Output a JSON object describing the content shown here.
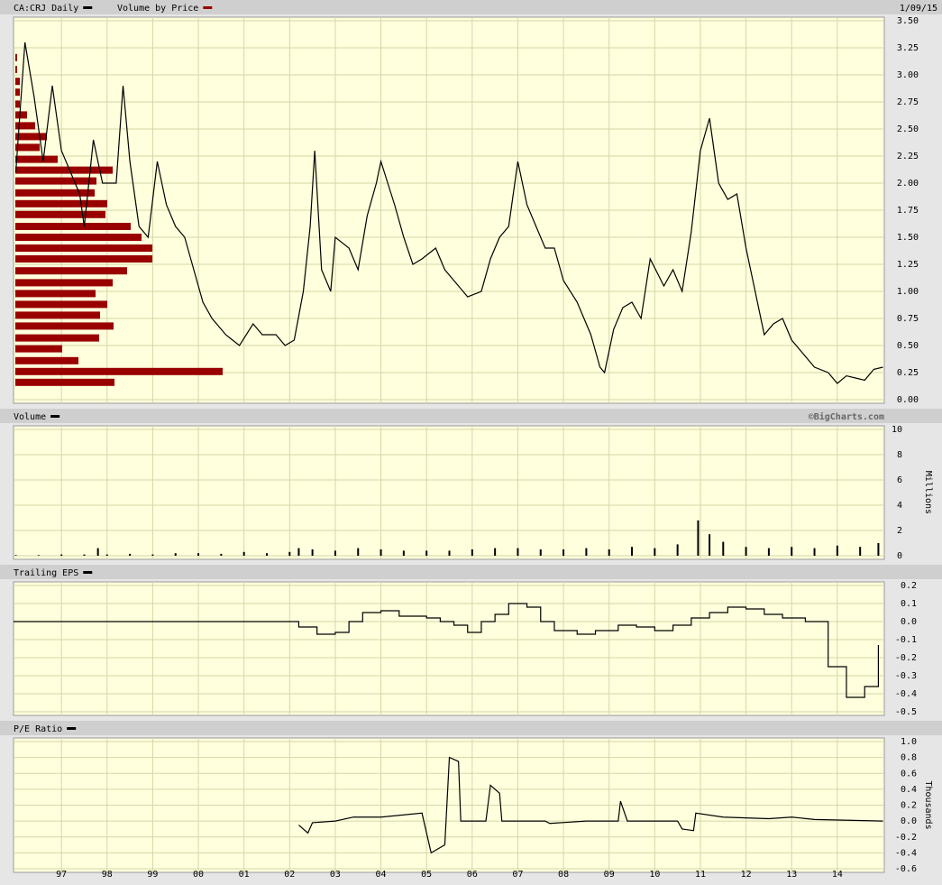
{
  "chart_data": [
    {
      "type": "line",
      "date": "1/09/15",
      "xlim": [
        1995.95,
        2015.03
      ],
      "x": [
        1996.0,
        1996.2,
        1996.4,
        1996.6,
        1996.8,
        1997.0,
        1997.2,
        1997.4,
        1997.5,
        1997.7,
        1997.9,
        1998.2,
        1998.35,
        1998.5,
        1998.7,
        1998.9,
        1999.1,
        1999.3,
        1999.5,
        1999.7,
        1999.9,
        2000.1,
        2000.3,
        2000.6,
        2000.9,
        2001.2,
        2001.4,
        2001.7,
        2001.9,
        2002.1,
        2002.3,
        2002.45,
        2002.55,
        2002.7,
        2002.9,
        2003.0,
        2003.3,
        2003.5,
        2003.7,
        2003.9,
        2004.0,
        2004.3,
        2004.5,
        2004.7,
        2004.9,
        2005.2,
        2005.4,
        2005.6,
        2005.9,
        2006.2,
        2006.4,
        2006.6,
        2006.8,
        2007.0,
        2007.2,
        2007.4,
        2007.6,
        2007.8,
        2008.0,
        2008.3,
        2008.6,
        2008.8,
        2008.9,
        2009.1,
        2009.3,
        2009.5,
        2009.7,
        2009.9,
        2010.2,
        2010.4,
        2010.6,
        2010.8,
        2011.0,
        2011.2,
        2011.4,
        2011.6,
        2011.8,
        2012.0,
        2012.2,
        2012.4,
        2012.6,
        2012.8,
        2013.0,
        2013.3,
        2013.5,
        2013.8,
        2014.0,
        2014.2,
        2014.4,
        2014.6,
        2014.8,
        2015.0
      ],
      "series": [
        {
          "name": "CA:CRJ Daily",
          "color": "#000000",
          "values": [
            2.1,
            3.3,
            2.8,
            2.2,
            2.9,
            2.3,
            2.1,
            1.9,
            1.6,
            2.4,
            2.0,
            2.0,
            2.9,
            2.2,
            1.6,
            1.5,
            2.2,
            1.8,
            1.6,
            1.5,
            1.2,
            0.9,
            0.75,
            0.6,
            0.5,
            0.7,
            0.6,
            0.6,
            0.5,
            0.55,
            1.0,
            1.6,
            2.3,
            1.2,
            1.0,
            1.5,
            1.4,
            1.2,
            1.7,
            2.0,
            2.2,
            1.8,
            1.5,
            1.25,
            1.3,
            1.4,
            1.2,
            1.1,
            0.95,
            1.0,
            1.3,
            1.5,
            1.6,
            2.2,
            1.8,
            1.6,
            1.4,
            1.4,
            1.1,
            0.9,
            0.6,
            0.3,
            0.25,
            0.65,
            0.85,
            0.9,
            0.75,
            1.3,
            1.05,
            1.2,
            1.0,
            1.55,
            2.3,
            2.6,
            2.0,
            1.85,
            1.9,
            1.4,
            1.0,
            0.6,
            0.7,
            0.75,
            0.55,
            0.4,
            0.3,
            0.25,
            0.15,
            0.22,
            0.2,
            0.18,
            0.28,
            0.3
          ]
        }
      ],
      "volume_by_price": {
        "name": "Volume by Price",
        "color": "#990000",
        "levels": [
          3.16,
          3.05,
          2.94,
          2.84,
          2.73,
          2.63,
          2.53,
          2.43,
          2.33,
          2.22,
          2.12,
          2.02,
          1.91,
          1.81,
          1.71,
          1.6,
          1.5,
          1.4,
          1.3,
          1.19,
          1.08,
          0.98,
          0.88,
          0.78,
          0.68,
          0.57,
          0.47,
          0.36,
          0.26,
          0.16
        ],
        "values": [
          2,
          2,
          5,
          5,
          5,
          13,
          22,
          35,
          27,
          47,
          108,
          90,
          88,
          102,
          100,
          128,
          140,
          152,
          152,
          124,
          108,
          89,
          102,
          94,
          109,
          93,
          52,
          70,
          230,
          110
        ]
      },
      "ylim": [
        0,
        3.5
      ],
      "yticks": [
        {
          "value": 0,
          "label": "0.00"
        },
        0.25,
        {
          "value": 0.5,
          "label": "0.50"
        },
        0.75,
        {
          "value": 1,
          "label": "1.00"
        },
        1.25,
        {
          "value": 1.5,
          "label": "1.50"
        },
        1.75,
        {
          "value": 2,
          "label": "2.00"
        },
        2.25,
        {
          "value": 2.5,
          "label": "2.50"
        },
        2.75,
        {
          "value": 3,
          "label": "3.00"
        },
        3.25,
        {
          "value": 3.5,
          "label": "3.50"
        }
      ],
      "grid": true
    },
    {
      "type": "bar",
      "credit": "©BigCharts.com",
      "ylabel": "Millions",
      "xlim": [
        1995.95,
        2015.03
      ],
      "x": [
        1996.0,
        1996.5,
        1997.0,
        1997.5,
        1997.8,
        1998.0,
        1998.5,
        1999.0,
        1999.5,
        2000.0,
        2000.5,
        2001.0,
        2001.5,
        2002.0,
        2002.2,
        2002.5,
        2003.0,
        2003.5,
        2004.0,
        2004.5,
        2005.0,
        2005.5,
        2006.0,
        2006.5,
        2007.0,
        2007.5,
        2008.0,
        2008.5,
        2009.0,
        2009.5,
        2010.0,
        2010.5,
        2010.95,
        2011.2,
        2011.5,
        2012.0,
        2012.5,
        2013.0,
        2013.5,
        2014.0,
        2014.5,
        2014.9
      ],
      "series": [
        {
          "name": "Volume",
          "color": "#000000",
          "values": [
            0.05,
            0.05,
            0.1,
            0.1,
            0.6,
            0.1,
            0.15,
            0.1,
            0.2,
            0.2,
            0.15,
            0.3,
            0.2,
            0.3,
            0.6,
            0.5,
            0.4,
            0.6,
            0.5,
            0.4,
            0.4,
            0.4,
            0.5,
            0.6,
            0.6,
            0.5,
            0.5,
            0.6,
            0.5,
            0.7,
            0.6,
            0.9,
            2.8,
            1.7,
            1.1,
            0.7,
            0.6,
            0.7,
            0.6,
            0.8,
            0.7,
            1.0
          ]
        }
      ],
      "ylim": [
        0,
        10
      ],
      "yticks": [
        0,
        2,
        4,
        6,
        8,
        10
      ],
      "grid": true
    },
    {
      "type": "line",
      "step": "post",
      "xlim": [
        1995.95,
        2015.03
      ],
      "x": [
        1995.95,
        2002.0,
        2002.2,
        2002.6,
        2003.0,
        2003.3,
        2003.6,
        2004.0,
        2004.4,
        2005.0,
        2005.3,
        2005.6,
        2005.9,
        2006.2,
        2006.5,
        2006.8,
        2007.2,
        2007.5,
        2007.8,
        2008.3,
        2008.7,
        2009.2,
        2009.6,
        2010.0,
        2010.4,
        2010.8,
        2011.2,
        2011.6,
        2012.0,
        2012.4,
        2012.8,
        2013.3,
        2013.8,
        2014.2,
        2014.6,
        2014.9
      ],
      "series": [
        {
          "name": "Trailing EPS",
          "color": "#000000",
          "values": [
            0.0,
            0.0,
            -0.03,
            -0.07,
            -0.06,
            0.0,
            0.05,
            0.06,
            0.03,
            0.02,
            0.0,
            -0.02,
            -0.06,
            0.0,
            0.04,
            0.1,
            0.08,
            0.0,
            -0.05,
            -0.07,
            -0.05,
            -0.02,
            -0.03,
            -0.05,
            -0.02,
            0.02,
            0.05,
            0.08,
            0.07,
            0.04,
            0.02,
            0.0,
            -0.25,
            -0.42,
            -0.36,
            -0.13
          ]
        }
      ],
      "ylim": [
        -0.5,
        0.2
      ],
      "yticks": [
        {
          "value": -0.5,
          "label": "-0.5"
        },
        {
          "value": -0.4,
          "label": "-0.4"
        },
        {
          "value": -0.3,
          "label": "-0.3"
        },
        -0.2,
        -0.1,
        {
          "value": 0,
          "label": "0.0"
        },
        0.1,
        0.2
      ],
      "grid": true
    },
    {
      "type": "line",
      "ylabel": "Thousands",
      "xlim": [
        1995.95,
        2015.03
      ],
      "x": [
        2002.2,
        2002.4,
        2002.5,
        2003.0,
        2003.4,
        2004.0,
        2004.9,
        2005.1,
        2005.4,
        2005.5,
        2005.7,
        2005.75,
        2006.3,
        2006.4,
        2006.6,
        2006.65,
        2007.6,
        2007.7,
        2008.5,
        2009.2,
        2009.25,
        2009.4,
        2010.5,
        2010.6,
        2010.85,
        2010.9,
        2011.5,
        2012.5,
        2013.0,
        2013.5,
        2015.0
      ],
      "series": [
        {
          "name": "P/E Ratio",
          "color": "#000000",
          "values": [
            -0.05,
            -0.15,
            -0.02,
            0.0,
            0.05,
            0.05,
            0.1,
            -0.4,
            -0.3,
            0.8,
            0.75,
            0.0,
            0.0,
            0.45,
            0.35,
            0.0,
            0.0,
            -0.03,
            0.0,
            0.0,
            0.25,
            0.0,
            0.0,
            -0.1,
            -0.12,
            0.1,
            0.05,
            0.03,
            0.05,
            0.02,
            0.0
          ]
        }
      ],
      "ylim": [
        -0.6,
        1.0
      ],
      "yticks": [
        -0.6,
        -0.4,
        -0.2,
        {
          "value": 0,
          "label": "0.0"
        },
        0.2,
        0.4,
        0.6,
        0.8,
        {
          "value": 1,
          "label": "1.0"
        }
      ],
      "xticks": [
        {
          "value": 1997,
          "label": "97"
        },
        {
          "value": 1998,
          "label": "98"
        },
        {
          "value": 1999,
          "label": "99"
        },
        {
          "value": 2000,
          "label": "00"
        },
        {
          "value": 2001,
          "label": "01"
        },
        {
          "value": 2002,
          "label": "02"
        },
        {
          "value": 2003,
          "label": "03"
        },
        {
          "value": 2004,
          "label": "04"
        },
        {
          "value": 2005,
          "label": "05"
        },
        {
          "value": 2006,
          "label": "06"
        },
        {
          "value": 2007,
          "label": "07"
        },
        {
          "value": 2008,
          "label": "08"
        },
        {
          "value": 2009,
          "label": "09"
        },
        {
          "value": 2010,
          "label": "10"
        },
        {
          "value": 2011,
          "label": "11"
        },
        {
          "value": 2012,
          "label": "12"
        },
        {
          "value": 2013,
          "label": "13"
        },
        {
          "value": 2014,
          "label": "14"
        }
      ],
      "grid": true
    }
  ]
}
